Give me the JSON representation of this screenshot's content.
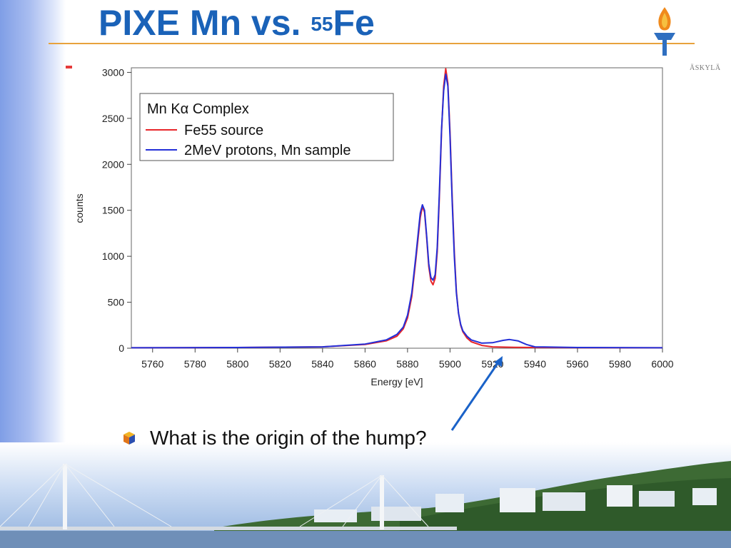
{
  "slide": {
    "title_main": "PIXE Mn vs. ",
    "title_superscript": "55",
    "title_element": "Fe",
    "logo_text": "ÄSKYLÄ",
    "bullet_text": "What is the origin of the hump?",
    "accent_color": "#1a62b8",
    "rule_color": "#e8a23c",
    "bullet_icon": "cube-bullet-icon",
    "logo_icon": "torch-logo-icon"
  },
  "chart_data": {
    "type": "line",
    "xlabel": "Energy [eV]",
    "ylabel": "counts",
    "xlim": [
      5750,
      6000
    ],
    "ylim": [
      0,
      3050
    ],
    "xticks": [
      5760,
      5780,
      5800,
      5820,
      5840,
      5860,
      5880,
      5900,
      5920,
      5940,
      5960,
      5980,
      6000
    ],
    "yticks": [
      0,
      500,
      1000,
      1500,
      2000,
      2500,
      3000
    ],
    "grid": false,
    "legend": {
      "title": "Mn Kα Complex",
      "placement": "top-left"
    },
    "series": [
      {
        "name": "Fe55 source",
        "color": "#e8262a",
        "x": [
          5750,
          5800,
          5840,
          5860,
          5870,
          5875,
          5878,
          5880,
          5882,
          5884,
          5886,
          5887,
          5888,
          5889,
          5890,
          5891,
          5892,
          5893,
          5894,
          5895,
          5896,
          5897,
          5898,
          5899,
          5900,
          5901,
          5902,
          5903,
          5904,
          5905,
          5906,
          5908,
          5910,
          5915,
          5920,
          5930,
          5940,
          5960,
          6000
        ],
        "y": [
          5,
          8,
          15,
          40,
          80,
          130,
          210,
          330,
          560,
          980,
          1420,
          1540,
          1480,
          1200,
          890,
          730,
          690,
          760,
          1050,
          1650,
          2350,
          2850,
          3040,
          2880,
          2350,
          1650,
          1050,
          620,
          380,
          250,
          180,
          110,
          70,
          30,
          15,
          10,
          8,
          6,
          5
        ]
      },
      {
        "name": "2MeV protons, Mn sample",
        "color": "#2430d8",
        "x": [
          5750,
          5800,
          5840,
          5860,
          5870,
          5875,
          5878,
          5880,
          5882,
          5884,
          5886,
          5887,
          5888,
          5889,
          5890,
          5891,
          5892,
          5893,
          5894,
          5895,
          5896,
          5897,
          5898,
          5899,
          5900,
          5901,
          5902,
          5903,
          5904,
          5905,
          5906,
          5908,
          5910,
          5915,
          5920,
          5925,
          5928,
          5932,
          5936,
          5940,
          5960,
          6000
        ],
        "y": [
          5,
          8,
          15,
          45,
          90,
          150,
          230,
          360,
          600,
          1020,
          1470,
          1560,
          1500,
          1220,
          920,
          770,
          740,
          800,
          1100,
          1700,
          2380,
          2800,
          2980,
          2850,
          2300,
          1600,
          1000,
          600,
          380,
          260,
          190,
          130,
          90,
          55,
          60,
          85,
          95,
          80,
          40,
          15,
          8,
          5
        ]
      }
    ]
  }
}
